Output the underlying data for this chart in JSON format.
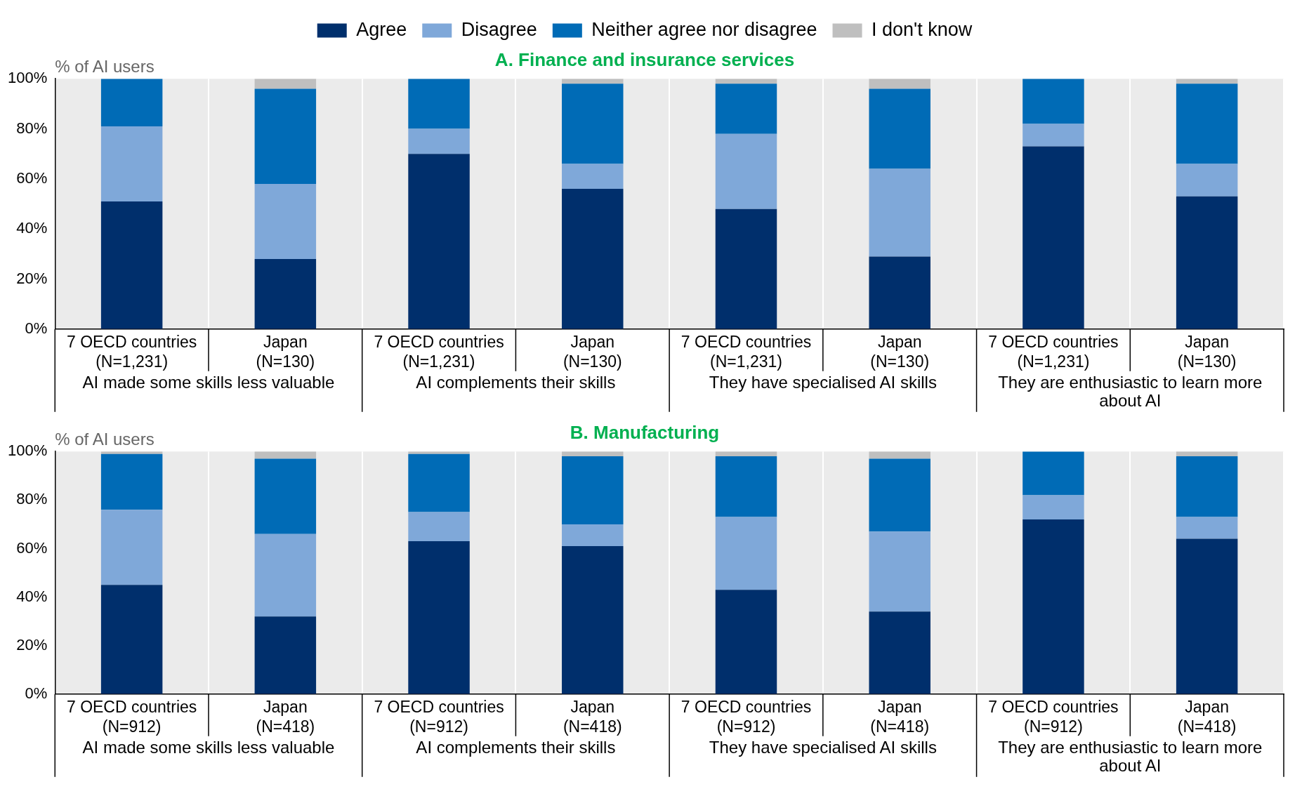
{
  "chart_data": [
    {
      "type": "bar",
      "title": "A. Finance and insurance services",
      "ylabel": "% of AI users",
      "stacked": true,
      "legend": "top",
      "grid": "x",
      "categories": [
        "7 OECD countries\n(N=1,231)",
        "Japan\n(N=130)",
        "7 OECD countries\n(N=1,231)",
        "Japan\n(N=130)",
        "7 OECD countries\n(N=1,231)",
        "Japan\n(N=130)",
        "7 OECD countries\n(N=1,231)",
        "Japan\n(N=130)"
      ],
      "annotations": [
        "AI made some skills less valuable",
        "AI complements their skills",
        "They have specialised AI skills",
        "They are enthusiastic to learn more about AI"
      ],
      "ylim": [
        0,
        100
      ],
      "yticks": [
        {
          "value": 0,
          "label": "0%"
        },
        {
          "value": 20,
          "label": "20%"
        },
        {
          "value": 40,
          "label": "40%"
        },
        {
          "value": 60,
          "label": "60%"
        },
        {
          "value": 80,
          "label": "80%"
        },
        {
          "value": 100,
          "label": "100%"
        }
      ],
      "series": [
        {
          "name": "Agree",
          "color": "#002f6c",
          "values": [
            51,
            28,
            70,
            56,
            48,
            29,
            73,
            53
          ]
        },
        {
          "name": "Disagree",
          "color": "#7fa8d9",
          "values": [
            30,
            30,
            10,
            10,
            30,
            35,
            9,
            13
          ]
        },
        {
          "name": "Neither agree nor disagree",
          "color": "#006bb6",
          "values": [
            19,
            38,
            20,
            32,
            20,
            32,
            18,
            32
          ]
        },
        {
          "name": "I don't know",
          "color": "#bfbfbf",
          "values": [
            0,
            4,
            0,
            2,
            2,
            4,
            0,
            2
          ]
        }
      ]
    },
    {
      "type": "bar",
      "title": "B. Manufacturing",
      "ylabel": "% of AI users",
      "stacked": true,
      "grid": "x",
      "categories": [
        "7 OECD countries\n(N=912)",
        "Japan\n(N=418)",
        "7 OECD countries\n(N=912)",
        "Japan\n(N=418)",
        "7 OECD countries\n(N=912)",
        "Japan\n(N=418)",
        "7 OECD countries\n(N=912)",
        "Japan\n(N=418)"
      ],
      "annotations": [
        "AI made some skills less valuable",
        "AI complements their skills",
        "They have specialised AI skills",
        "They are enthusiastic to learn more about AI"
      ],
      "ylim": [
        0,
        100
      ],
      "yticks": [
        {
          "value": 0,
          "label": "0%"
        },
        {
          "value": 20,
          "label": "20%"
        },
        {
          "value": 40,
          "label": "40%"
        },
        {
          "value": 60,
          "label": "60%"
        },
        {
          "value": 80,
          "label": "80%"
        },
        {
          "value": 100,
          "label": "100%"
        }
      ],
      "series": [
        {
          "color": "#002f6c",
          "values": [
            45,
            32,
            63,
            61,
            43,
            34,
            72,
            64
          ]
        },
        {
          "color": "#7fa8d9",
          "values": [
            31,
            34,
            12,
            9,
            30,
            33,
            10,
            9
          ]
        },
        {
          "color": "#006bb6",
          "values": [
            23,
            31,
            24,
            28,
            25,
            30,
            18,
            25
          ]
        },
        {
          "color": "#bfbfbf",
          "values": [
            1,
            3,
            1,
            2,
            2,
            3,
            0,
            2
          ]
        }
      ]
    }
  ]
}
